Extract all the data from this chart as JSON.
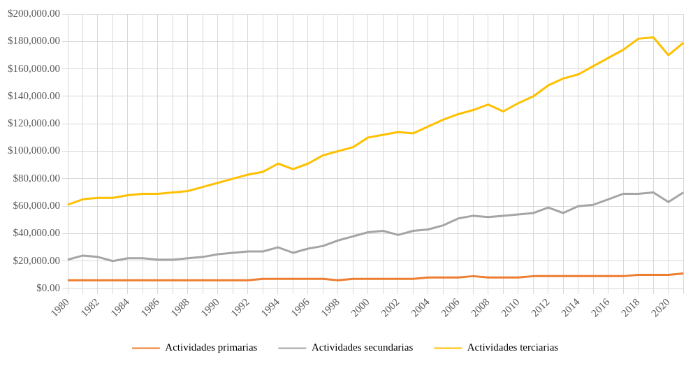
{
  "chart_data": {
    "type": "line",
    "categories": [
      "1980",
      null,
      "1982",
      null,
      "1984",
      null,
      "1986",
      null,
      "1988",
      null,
      "1990",
      null,
      "1992",
      null,
      "1994",
      null,
      "1996",
      null,
      "1998",
      null,
      "2000",
      null,
      "2002",
      null,
      "2004",
      null,
      "2006",
      null,
      "2008",
      null,
      "2010",
      null,
      "2012",
      null,
      "2014",
      null,
      "2016",
      null,
      "2018",
      null,
      "2020",
      null
    ],
    "series": [
      {
        "name": "Actividades primarias",
        "color": "#ed7d31",
        "values": [
          6000,
          6000,
          6000,
          6000,
          6000,
          6000,
          6000,
          6000,
          6000,
          6000,
          6000,
          6000,
          6000,
          7000,
          7000,
          7000,
          7000,
          7000,
          6000,
          7000,
          7000,
          7000,
          7000,
          7000,
          8000,
          8000,
          8000,
          9000,
          8000,
          8000,
          8000,
          9000,
          9000,
          9000,
          9000,
          9000,
          9000,
          9000,
          10000,
          10000,
          10000,
          11000
        ]
      },
      {
        "name": "Actividades secundarias",
        "color": "#a5a5a5",
        "values": [
          21000,
          24000,
          23000,
          20000,
          22000,
          22000,
          21000,
          21000,
          22000,
          23000,
          25000,
          26000,
          27000,
          27000,
          30000,
          26000,
          29000,
          31000,
          35000,
          38000,
          41000,
          42000,
          39000,
          42000,
          43000,
          46000,
          51000,
          53000,
          52000,
          53000,
          54000,
          55000,
          59000,
          55000,
          60000,
          61000,
          65000,
          69000,
          69000,
          70000,
          63000,
          70000
        ]
      },
      {
        "name": "Actividades terciarias",
        "color": "#ffc000",
        "values": [
          61000,
          65000,
          66000,
          66000,
          68000,
          69000,
          69000,
          70000,
          71000,
          74000,
          77000,
          80000,
          83000,
          85000,
          91000,
          87000,
          91000,
          97000,
          100000,
          103000,
          110000,
          112000,
          114000,
          113000,
          118000,
          123000,
          127000,
          130000,
          134000,
          129000,
          135000,
          140000,
          148000,
          153000,
          156000,
          162000,
          168000,
          174000,
          182000,
          183000,
          170000,
          179000
        ]
      }
    ],
    "ylim": [
      0,
      200000
    ],
    "yticks": [
      {
        "value": 0,
        "label": "$0.00"
      },
      {
        "value": 20000,
        "label": "$20,000.00"
      },
      {
        "value": 40000,
        "label": "$40,000.00"
      },
      {
        "value": 60000,
        "label": "$60,000.00"
      },
      {
        "value": 80000,
        "label": "$80,000.00"
      },
      {
        "value": 100000,
        "label": "$100,000.00"
      },
      {
        "value": 120000,
        "label": "$120,000.00"
      },
      {
        "value": 140000,
        "label": "$140,000.00"
      },
      {
        "value": 160000,
        "label": "$160,000.00"
      },
      {
        "value": 180000,
        "label": "$180,000.00"
      },
      {
        "value": 200000,
        "label": "$200,000.00"
      }
    ],
    "grid": true,
    "legend": "bottom",
    "marker": "none",
    "line_style": "solid"
  }
}
